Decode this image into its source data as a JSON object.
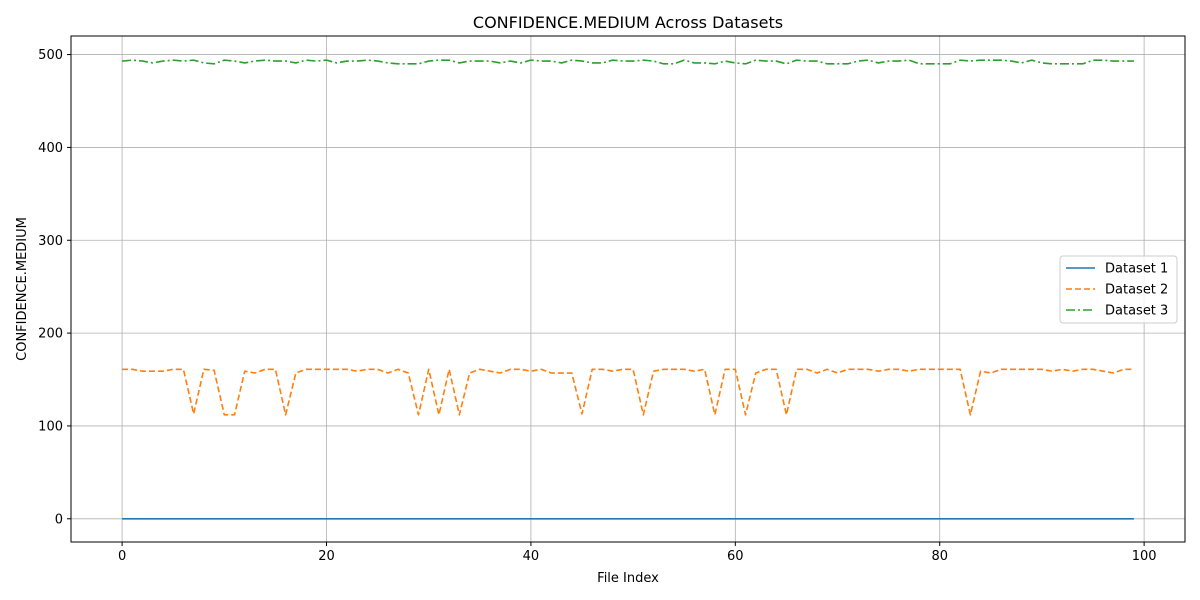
{
  "chart_data": {
    "type": "line",
    "title": "CONFIDENCE.MEDIUM Across Datasets",
    "xlabel": "File Index",
    "ylabel": "CONFIDENCE.MEDIUM",
    "xlim": [
      -5,
      104
    ],
    "ylim": [
      -25,
      520
    ],
    "xticks": [
      0,
      20,
      40,
      60,
      80,
      100
    ],
    "yticks": [
      0,
      100,
      200,
      300,
      400,
      500
    ],
    "grid": true,
    "legend_position": "center-right",
    "x": [
      0,
      1,
      2,
      3,
      4,
      5,
      6,
      7,
      8,
      9,
      10,
      11,
      12,
      13,
      14,
      15,
      16,
      17,
      18,
      19,
      20,
      21,
      22,
      23,
      24,
      25,
      26,
      27,
      28,
      29,
      30,
      31,
      32,
      33,
      34,
      35,
      36,
      37,
      38,
      39,
      40,
      41,
      42,
      43,
      44,
      45,
      46,
      47,
      48,
      49,
      50,
      51,
      52,
      53,
      54,
      55,
      56,
      57,
      58,
      59,
      60,
      61,
      62,
      63,
      64,
      65,
      66,
      67,
      68,
      69,
      70,
      71,
      72,
      73,
      74,
      75,
      76,
      77,
      78,
      79,
      80,
      81,
      82,
      83,
      84,
      85,
      86,
      87,
      88,
      89,
      90,
      91,
      92,
      93,
      94,
      95,
      96,
      97,
      98,
      99
    ],
    "series": [
      {
        "name": "Dataset 1",
        "color": "#1f77b4",
        "dash": "solid",
        "values": [
          0,
          0,
          0,
          0,
          0,
          0,
          0,
          0,
          0,
          0,
          0,
          0,
          0,
          0,
          0,
          0,
          0,
          0,
          0,
          0,
          0,
          0,
          0,
          0,
          0,
          0,
          0,
          0,
          0,
          0,
          0,
          0,
          0,
          0,
          0,
          0,
          0,
          0,
          0,
          0,
          0,
          0,
          0,
          0,
          0,
          0,
          0,
          0,
          0,
          0,
          0,
          0,
          0,
          0,
          0,
          0,
          0,
          0,
          0,
          0,
          0,
          0,
          0,
          0,
          0,
          0,
          0,
          0,
          0,
          0,
          0,
          0,
          0,
          0,
          0,
          0,
          0,
          0,
          0,
          0,
          0,
          0,
          0,
          0,
          0,
          0,
          0,
          0,
          0,
          0,
          0,
          0,
          0,
          0,
          0,
          0,
          0,
          0,
          0,
          0
        ]
      },
      {
        "name": "Dataset 2",
        "color": "#ff7f0e",
        "dash": "dashed",
        "values": [
          161,
          161,
          159,
          159,
          159,
          161,
          161,
          113,
          161,
          160,
          112,
          112,
          159,
          157,
          161,
          161,
          112,
          157,
          161,
          161,
          161,
          161,
          161,
          159,
          161,
          161,
          157,
          161,
          157,
          112,
          161,
          112,
          161,
          112,
          157,
          161,
          159,
          157,
          161,
          161,
          159,
          161,
          157,
          157,
          157,
          113,
          161,
          161,
          159,
          161,
          161,
          112,
          159,
          161,
          161,
          161,
          159,
          161,
          112,
          161,
          161,
          112,
          157,
          161,
          161,
          112,
          161,
          161,
          157,
          161,
          157,
          161,
          161,
          161,
          159,
          161,
          161,
          159,
          161,
          161,
          161,
          161,
          161,
          112,
          159,
          157,
          161,
          161,
          161,
          161,
          161,
          159,
          161,
          159,
          161,
          161,
          159,
          157,
          161,
          161
        ]
      },
      {
        "name": "Dataset 3",
        "color": "#2ca02c",
        "dash": "dashdot",
        "values": [
          493,
          494,
          493,
          491,
          493,
          494,
          493,
          494,
          491,
          490,
          494,
          493,
          491,
          493,
          494,
          493,
          493,
          491,
          494,
          493,
          494,
          491,
          493,
          493,
          494,
          493,
          491,
          490,
          490,
          490,
          493,
          494,
          494,
          491,
          493,
          493,
          493,
          491,
          493,
          491,
          494,
          493,
          493,
          491,
          494,
          493,
          491,
          491,
          494,
          493,
          493,
          494,
          493,
          490,
          490,
          494,
          491,
          491,
          490,
          493,
          491,
          490,
          494,
          493,
          493,
          490,
          494,
          493,
          493,
          490,
          490,
          490,
          493,
          494,
          491,
          493,
          493,
          494,
          490,
          490,
          490,
          490,
          494,
          493,
          494,
          494,
          494,
          493,
          491,
          494,
          491,
          490,
          490,
          490,
          490,
          494,
          494,
          493,
          493,
          493
        ]
      }
    ]
  }
}
